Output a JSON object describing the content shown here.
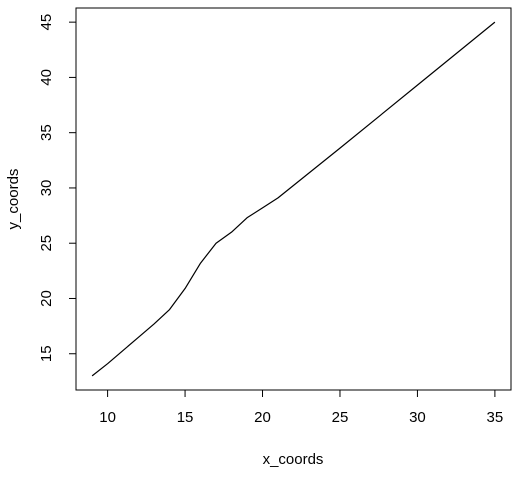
{
  "chart_data": {
    "type": "line",
    "x": [
      9,
      10,
      11,
      12,
      13,
      14,
      15,
      16,
      17,
      18,
      19,
      20,
      21,
      25,
      30,
      35
    ],
    "series": [
      {
        "color": "#000000",
        "values": [
          13,
          14.1,
          15.3,
          16.5,
          17.7,
          19.0,
          20.9,
          23.2,
          25.0,
          26.0,
          27.3,
          28.2,
          29.1,
          33.6,
          39.3,
          45
        ]
      }
    ],
    "xlabel": "x_coords",
    "ylabel": "y_coords",
    "xlim": [
      7.96,
      36.04
    ],
    "ylim": [
      11.72,
      46.28
    ],
    "xticks": [
      10,
      15,
      20,
      25,
      30,
      35
    ],
    "yticks": [
      15,
      20,
      25,
      30,
      35,
      40,
      45
    ]
  }
}
